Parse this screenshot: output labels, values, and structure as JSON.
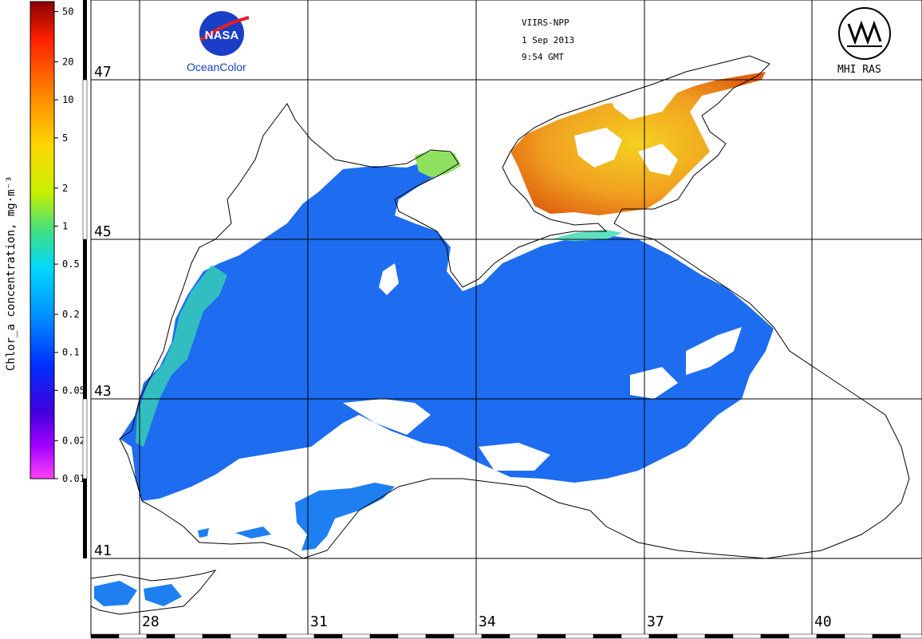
{
  "header": {
    "sensor": "VIIRS-NPP",
    "date": "1 Sep 2013",
    "time": "9:54 GMT",
    "oceancolor_label": "OceanColor",
    "nasa_logo_text": "NASA",
    "mhi_label": "MHI RAS"
  },
  "colorbar": {
    "title": "Chlor_a concentration, mg·m⁻³",
    "ticks": [
      "50",
      "20",
      "10",
      "5",
      "2",
      "1",
      "0.5",
      "0.2",
      "0.1",
      "0.05",
      "0.02",
      "0.01"
    ],
    "scale": "log",
    "range": [
      0.01,
      60
    ],
    "colors_top_to_bottom": [
      "#8b0000",
      "#ff2000",
      "#ff8a00",
      "#ffd600",
      "#c8f000",
      "#40e080",
      "#00d8ff",
      "#0090ff",
      "#0030ff",
      "#4000e0",
      "#a000ff",
      "#ff40ff"
    ]
  },
  "grid": {
    "latitude_labels": [
      "47",
      "45",
      "43",
      "41"
    ],
    "longitude_labels": [
      "28",
      "31",
      "34",
      "37",
      "40"
    ]
  },
  "colors": {
    "sea_chlorophyll_low": "#1e6cf0",
    "sea_chlorophyll_mid": "#3ad8b0",
    "azov_high": "#f08a20",
    "coastline": "#000000",
    "grid": "#000000"
  }
}
